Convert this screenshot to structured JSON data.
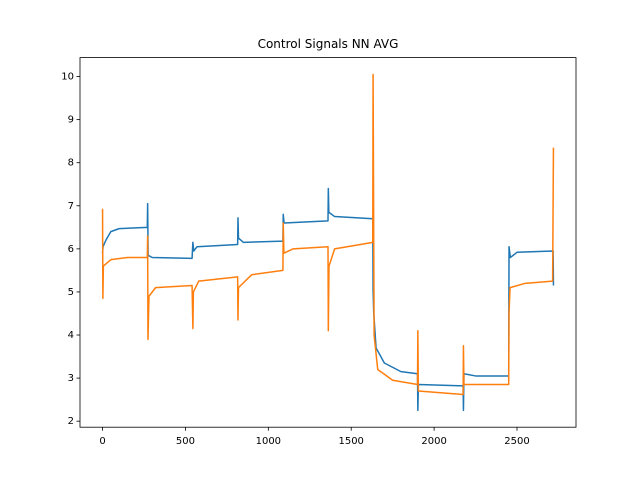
{
  "chart_data": {
    "type": "line",
    "title": "Control Signals NN AVG",
    "series": [
      {
        "color": "#1f77b4",
        "x": [
          0,
          3,
          20,
          50,
          100,
          270,
          272,
          275,
          300,
          540,
          545,
          550,
          570,
          815,
          817,
          820,
          850,
          1088,
          1090,
          1095,
          1360,
          1362,
          1365,
          1400,
          1630,
          1632,
          1636,
          1650,
          1700,
          1800,
          1900,
          1902,
          1905,
          2175,
          2177,
          2180,
          2250,
          2450,
          2452,
          2460,
          2500,
          2718,
          2720
        ],
        "values": [
          5.9,
          6.05,
          6.2,
          6.4,
          6.47,
          6.5,
          7.05,
          5.85,
          5.8,
          5.78,
          6.15,
          5.95,
          6.05,
          6.1,
          6.72,
          6.25,
          6.15,
          6.18,
          6.8,
          6.6,
          6.65,
          7.4,
          6.85,
          6.75,
          6.7,
          5.05,
          4.5,
          3.7,
          3.35,
          3.15,
          3.1,
          2.25,
          2.85,
          2.82,
          2.25,
          3.1,
          3.05,
          3.05,
          6.05,
          5.8,
          5.92,
          5.95,
          5.15
        ]
      },
      {
        "color": "#ff7f0e",
        "x": [
          0,
          2,
          5,
          50,
          150,
          270,
          272,
          274,
          280,
          320,
          540,
          545,
          548,
          580,
          815,
          817,
          820,
          900,
          1088,
          1090,
          1094,
          1150,
          1360,
          1362,
          1366,
          1400,
          1630,
          1632,
          1638,
          1660,
          1750,
          1900,
          1902,
          1905,
          2175,
          2177,
          2180,
          2450,
          2452,
          2458,
          2550,
          2715,
          2720
        ],
        "values": [
          6.93,
          4.85,
          5.6,
          5.75,
          5.8,
          5.8,
          6.3,
          3.9,
          4.9,
          5.1,
          5.15,
          4.15,
          5.0,
          5.25,
          5.35,
          4.35,
          5.1,
          5.4,
          5.5,
          6.6,
          5.9,
          6.0,
          6.05,
          4.1,
          5.6,
          6.0,
          6.15,
          10.05,
          4.0,
          3.2,
          2.95,
          2.85,
          4.1,
          2.7,
          2.62,
          3.75,
          2.85,
          2.85,
          4.5,
          5.1,
          5.2,
          5.25,
          8.35
        ]
      }
    ],
    "xlim": [
      -136,
      2856
    ],
    "xticks": [
      0,
      500,
      1000,
      1500,
      2000,
      2500
    ],
    "ylim": [
      1.86,
      10.44
    ],
    "yticks": [
      2,
      3,
      4,
      5,
      6,
      7,
      8,
      9,
      10
    ]
  }
}
